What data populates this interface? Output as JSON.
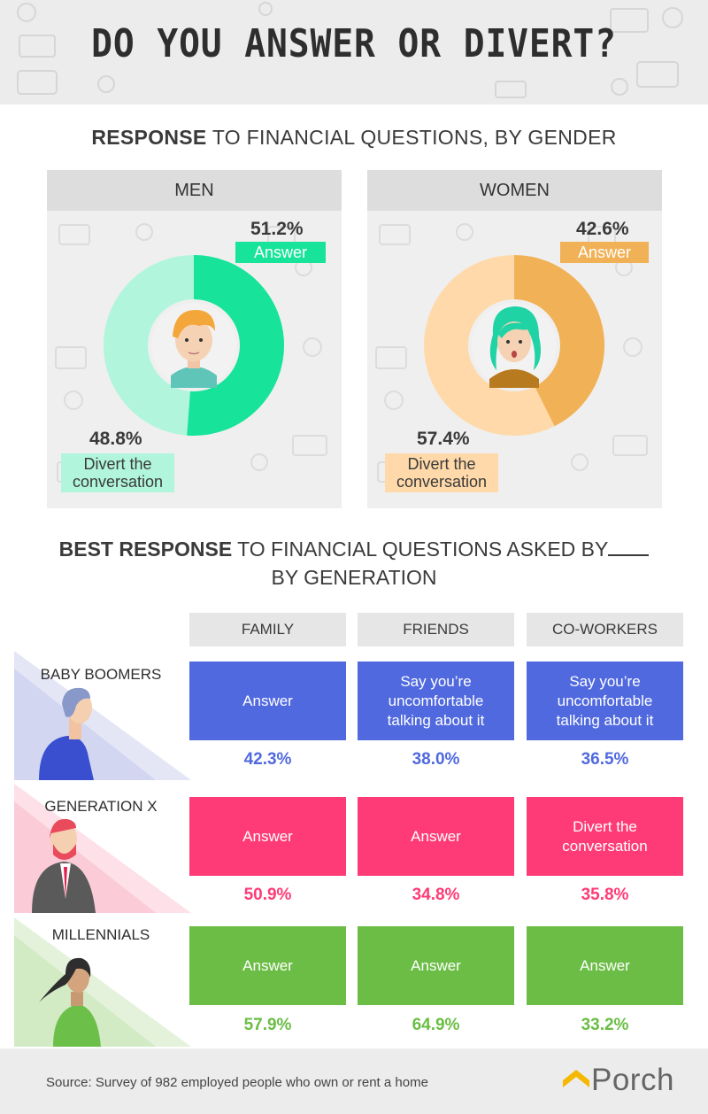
{
  "title": "DO YOU ANSWER OR DIVERT?",
  "section1": {
    "title_bold": "RESPONSE",
    "title_rest": " TO FINANCIAL QUESTIONS, BY GENDER"
  },
  "section2": {
    "title_bold": "BEST RESPONSE",
    "title_rest": " TO FINANCIAL QUESTIONS ASKED BY",
    "title_line2": "BY GENERATION"
  },
  "colors": {
    "men_answer": "#17e39a",
    "men_divert": "#b1f5dd",
    "women_answer": "#f1b156",
    "women_divert": "#ffd9a9",
    "boomers": "#5069df",
    "genx": "#ff3b77",
    "millennials": "#6bbd45"
  },
  "chart_data": [
    {
      "type": "pie",
      "title": "MEN",
      "slices": [
        {
          "label": "Answer",
          "value": 51.2,
          "display": "51.2%"
        },
        {
          "label": "Divert the conversation",
          "value": 48.8,
          "display": "48.8%"
        }
      ]
    },
    {
      "type": "pie",
      "title": "WOMEN",
      "slices": [
        {
          "label": "Answer",
          "value": 42.6,
          "display": "42.6%"
        },
        {
          "label": "Divert the conversation",
          "value": 57.4,
          "display": "57.4%"
        }
      ]
    },
    {
      "type": "table",
      "columns": [
        "FAMILY",
        "FRIENDS",
        "CO-WORKERS"
      ],
      "rows": [
        {
          "generation": "BABY BOOMERS",
          "cells": [
            {
              "response": "Answer",
              "value": 42.3,
              "display": "42.3%"
            },
            {
              "response": "Say you’re uncomfortable talking about it",
              "value": 38.0,
              "display": "38.0%"
            },
            {
              "response": "Say you’re uncomfortable talking about it",
              "value": 36.5,
              "display": "36.5%"
            }
          ]
        },
        {
          "generation": "GENERATION X",
          "cells": [
            {
              "response": "Answer",
              "value": 50.9,
              "display": "50.9%"
            },
            {
              "response": "Answer",
              "value": 34.8,
              "display": "34.8%"
            },
            {
              "response": "Divert the conversation",
              "value": 35.8,
              "display": "35.8%"
            }
          ]
        },
        {
          "generation": "MILLENNIALS",
          "cells": [
            {
              "response": "Answer",
              "value": 57.9,
              "display": "57.9%"
            },
            {
              "response": "Answer",
              "value": 64.9,
              "display": "64.9%"
            },
            {
              "response": "Answer",
              "value": 33.2,
              "display": "33.2%"
            }
          ]
        }
      ]
    }
  ],
  "footer": {
    "source": "Source: Survey of 982 employed people who own or rent a home",
    "brand": "Porch"
  }
}
